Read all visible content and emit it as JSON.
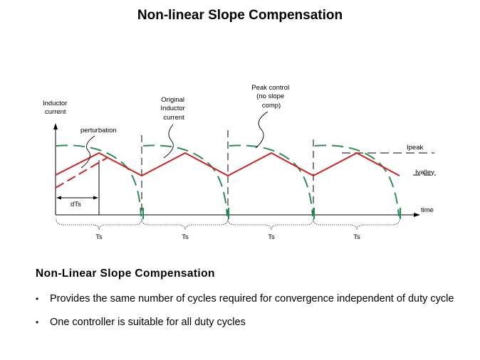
{
  "title": "Non-linear Slope Compensation",
  "diagram": {
    "y_axis_label": [
      "Inductor",
      "current"
    ],
    "x_axis_label": "time",
    "annotations": {
      "perturbation": "perturbation",
      "original": [
        "Original",
        "Inductor",
        "current"
      ],
      "peak_control": [
        "Peak control",
        "(no slope",
        "comp)"
      ],
      "ipeak": "Ipeak",
      "ivalley": "Ivalley",
      "dts": "dTs"
    },
    "period_label": "Ts",
    "periods": [
      "Ts",
      "Ts",
      "Ts",
      "Ts"
    ],
    "colors": {
      "current": "#cc2222",
      "compensation": "#2e8b57",
      "axis": "#000000"
    }
  },
  "section_heading": "Non-Linear Slope Compensation",
  "bullets": [
    "Provides the same number of cycles required for convergence independent of duty cycle",
    "One controller is suitable for all duty cycles"
  ]
}
